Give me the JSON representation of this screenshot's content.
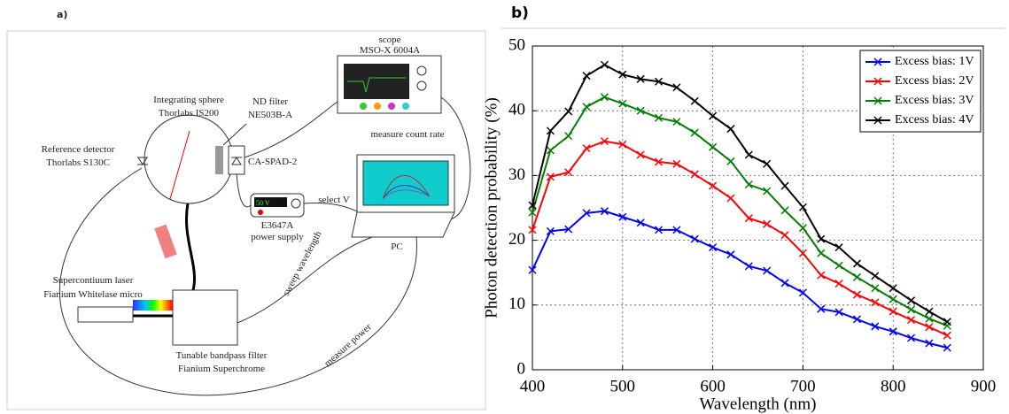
{
  "panel_a": {
    "label": "a)",
    "texts": {
      "scope": "scope",
      "scope_model": "MSO-X 6004A",
      "sphere": "Integrating sphere",
      "sphere_model": "Thorlabs IS200",
      "nd": "ND filter",
      "nd_model": "NE503B-A",
      "ref": "Reference detector",
      "ref_model": "Thorlabs S130C",
      "spad": "CA-SPAD-2",
      "count": "measure count rate",
      "display": "50 V",
      "select": "select V",
      "psu_model": "E3647A",
      "psu": "power supply",
      "pc": "PC",
      "sweep": "sweep wavelength",
      "laser": "Supercontiuum laser",
      "laser_model": "Fianium Whitelase micro",
      "filter": "Tunable bandpass filter",
      "filter_model": "Fianium Superchrome",
      "power": "measure power"
    }
  },
  "panel_b": {
    "label": "b)"
  },
  "chart_data": {
    "type": "line",
    "x_label": "Wavelength (nm)",
    "y_label": "Photon detection probability (%)",
    "x": [
      400,
      420,
      440,
      460,
      480,
      500,
      520,
      540,
      560,
      580,
      600,
      620,
      640,
      660,
      680,
      700,
      720,
      740,
      760,
      780,
      800,
      820,
      840,
      860
    ],
    "series": [
      {
        "name": "Excess bias: 1V",
        "color": "#0000ff",
        "values": [
          15.4,
          21.4,
          21.7,
          24.2,
          24.5,
          23.6,
          22.7,
          21.6,
          21.6,
          20.2,
          18.9,
          17.8,
          16.0,
          15.3,
          13.4,
          11.9,
          9.4,
          8.9,
          7.8,
          6.7,
          5.9,
          4.9,
          4.1,
          3.4
        ]
      },
      {
        "name": "Excess bias: 2V",
        "color": "#ff0000",
        "values": [
          21.6,
          29.8,
          30.5,
          34.2,
          35.3,
          34.8,
          33.2,
          32.1,
          31.8,
          30.2,
          28.4,
          26.5,
          23.4,
          22.5,
          20.8,
          18.0,
          14.6,
          13.3,
          11.6,
          10.4,
          9.0,
          7.7,
          6.6,
          5.3
        ]
      },
      {
        "name": "Excess bias: 3V",
        "color": "#008000",
        "values": [
          24.3,
          33.9,
          36.1,
          40.6,
          42.1,
          41.1,
          40.0,
          38.9,
          38.3,
          36.6,
          34.4,
          32.2,
          28.6,
          27.6,
          24.6,
          21.9,
          18.0,
          16.1,
          14.3,
          12.6,
          10.9,
          9.3,
          7.9,
          6.8
        ]
      },
      {
        "name": "Excess bias: 4V",
        "color": "#000000",
        "values": [
          25.4,
          36.9,
          39.9,
          45.4,
          47.1,
          45.6,
          44.9,
          44.5,
          43.6,
          41.5,
          39.2,
          37.2,
          33.2,
          31.8,
          28.4,
          25.1,
          20.2,
          18.9,
          16.4,
          14.5,
          12.6,
          10.7,
          9.0,
          7.4
        ]
      }
    ],
    "xlim": [
      400,
      900
    ],
    "xticks": [
      400,
      500,
      600,
      700,
      800,
      900
    ],
    "ylim": [
      0,
      50
    ],
    "yticks": [
      0,
      10,
      20,
      30,
      40,
      50
    ],
    "grid": true,
    "legend": "upper right",
    "marker": "x"
  }
}
